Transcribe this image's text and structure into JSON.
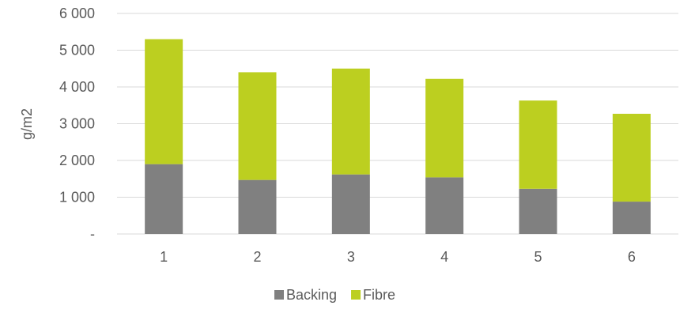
{
  "chart_data": {
    "type": "bar",
    "stacked": true,
    "categories": [
      "1",
      "2",
      "3",
      "4",
      "5",
      "6"
    ],
    "series": [
      {
        "name": "Backing",
        "color": "#808080",
        "values": [
          1900,
          1470,
          1620,
          1540,
          1230,
          880
        ]
      },
      {
        "name": "Fibre",
        "color": "#BCCF20",
        "values": [
          3400,
          2930,
          2880,
          2680,
          2400,
          2390
        ]
      }
    ],
    "ylabel": "g/m2",
    "xlabel": "",
    "title": "",
    "ylim": [
      0,
      6000
    ],
    "yticks": [
      0,
      1000,
      2000,
      3000,
      4000,
      5000,
      6000
    ],
    "ytick_labels": [
      "-",
      "1 000",
      "2 000",
      "3 000",
      "4 000",
      "5 000",
      "6 000"
    ],
    "grid": true,
    "legend_position": "bottom"
  }
}
